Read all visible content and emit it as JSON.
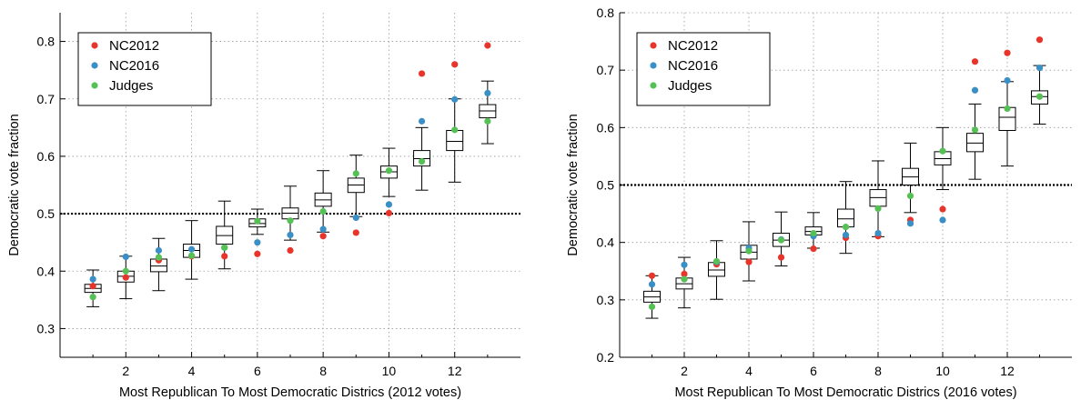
{
  "chart_data": [
    {
      "type": "box",
      "xlabel": "Most Republican To Most Democratic Districs (2012 votes)",
      "ylabel": "Democratic vote fraction",
      "xlim": [
        0,
        14
      ],
      "ylim": [
        0.25,
        0.85
      ],
      "xticks": [
        2,
        4,
        6,
        8,
        10,
        12
      ],
      "yticks": [
        0.3,
        0.4,
        0.5,
        0.6,
        0.7,
        0.8
      ],
      "grid": true,
      "legend_position": "top-left",
      "reference_line": 0.5,
      "boxes": [
        {
          "x": 1,
          "min": 0.338,
          "q1": 0.363,
          "median": 0.37,
          "q3": 0.377,
          "max": 0.402
        },
        {
          "x": 2,
          "min": 0.352,
          "q1": 0.381,
          "median": 0.391,
          "q3": 0.4,
          "max": 0.426
        },
        {
          "x": 3,
          "min": 0.366,
          "q1": 0.399,
          "median": 0.409,
          "q3": 0.421,
          "max": 0.457
        },
        {
          "x": 4,
          "min": 0.386,
          "q1": 0.424,
          "median": 0.436,
          "q3": 0.447,
          "max": 0.488
        },
        {
          "x": 5,
          "min": 0.404,
          "q1": 0.447,
          "median": 0.462,
          "q3": 0.478,
          "max": 0.522
        },
        {
          "x": 6,
          "min": 0.464,
          "q1": 0.477,
          "median": 0.483,
          "q3": 0.491,
          "max": 0.508
        },
        {
          "x": 7,
          "min": 0.454,
          "q1": 0.491,
          "median": 0.501,
          "q3": 0.51,
          "max": 0.548
        },
        {
          "x": 8,
          "min": 0.468,
          "q1": 0.513,
          "median": 0.524,
          "q3": 0.536,
          "max": 0.575
        },
        {
          "x": 9,
          "min": 0.495,
          "q1": 0.537,
          "median": 0.55,
          "q3": 0.562,
          "max": 0.602
        },
        {
          "x": 10,
          "min": 0.53,
          "q1": 0.562,
          "median": 0.573,
          "q3": 0.583,
          "max": 0.614
        },
        {
          "x": 11,
          "min": 0.541,
          "q1": 0.583,
          "median": 0.596,
          "q3": 0.61,
          "max": 0.65
        },
        {
          "x": 12,
          "min": 0.555,
          "q1": 0.61,
          "median": 0.626,
          "q3": 0.645,
          "max": 0.7
        },
        {
          "x": 13,
          "min": 0.622,
          "q1": 0.667,
          "median": 0.679,
          "q3": 0.69,
          "max": 0.731
        }
      ],
      "series": [
        {
          "name": "NC2012",
          "color": "#e8352b",
          "values": [
            0.374,
            0.389,
            0.419,
            0.426,
            0.426,
            0.43,
            0.436,
            0.461,
            0.467,
            0.501,
            0.744,
            0.76,
            0.793
          ]
        },
        {
          "name": "NC2016",
          "color": "#3a8fc7",
          "values": [
            0.386,
            0.425,
            0.436,
            0.438,
            0.441,
            0.45,
            0.463,
            0.473,
            0.493,
            0.516,
            0.661,
            0.699,
            0.71
          ]
        },
        {
          "name": "Judges",
          "color": "#55c155",
          "values": [
            0.355,
            0.4,
            0.424,
            0.427,
            0.441,
            0.487,
            0.488,
            0.504,
            0.57,
            0.575,
            0.591,
            0.646,
            0.661
          ]
        }
      ]
    },
    {
      "type": "box",
      "xlabel": "Most Republican To Most Democratic Districs (2016 votes)",
      "ylabel": "Democratic vote fraction",
      "xlim": [
        0,
        14
      ],
      "ylim": [
        0.2,
        0.8
      ],
      "xticks": [
        2,
        4,
        6,
        8,
        10,
        12
      ],
      "yticks": [
        0.2,
        0.3,
        0.4,
        0.5,
        0.6,
        0.7,
        0.8
      ],
      "grid": true,
      "legend_position": "top-left",
      "reference_line": 0.5,
      "boxes": [
        {
          "x": 1,
          "min": 0.268,
          "q1": 0.296,
          "median": 0.305,
          "q3": 0.315,
          "max": 0.342
        },
        {
          "x": 2,
          "min": 0.286,
          "q1": 0.319,
          "median": 0.328,
          "q3": 0.338,
          "max": 0.374
        },
        {
          "x": 3,
          "min": 0.301,
          "q1": 0.341,
          "median": 0.352,
          "q3": 0.365,
          "max": 0.403
        },
        {
          "x": 4,
          "min": 0.333,
          "q1": 0.371,
          "median": 0.383,
          "q3": 0.395,
          "max": 0.436
        },
        {
          "x": 5,
          "min": 0.359,
          "q1": 0.393,
          "median": 0.404,
          "q3": 0.416,
          "max": 0.453
        },
        {
          "x": 6,
          "min": 0.39,
          "q1": 0.413,
          "median": 0.419,
          "q3": 0.427,
          "max": 0.452
        },
        {
          "x": 7,
          "min": 0.381,
          "q1": 0.427,
          "median": 0.441,
          "q3": 0.458,
          "max": 0.506
        },
        {
          "x": 8,
          "min": 0.41,
          "q1": 0.463,
          "median": 0.478,
          "q3": 0.492,
          "max": 0.542
        },
        {
          "x": 9,
          "min": 0.452,
          "q1": 0.5,
          "median": 0.514,
          "q3": 0.529,
          "max": 0.573
        },
        {
          "x": 10,
          "min": 0.492,
          "q1": 0.535,
          "median": 0.546,
          "q3": 0.558,
          "max": 0.6
        },
        {
          "x": 11,
          "min": 0.51,
          "q1": 0.558,
          "median": 0.573,
          "q3": 0.59,
          "max": 0.641
        },
        {
          "x": 12,
          "min": 0.533,
          "q1": 0.595,
          "median": 0.618,
          "q3": 0.635,
          "max": 0.68
        },
        {
          "x": 13,
          "min": 0.606,
          "q1": 0.641,
          "median": 0.654,
          "q3": 0.664,
          "max": 0.708
        }
      ],
      "series": [
        {
          "name": "NC2012",
          "color": "#e8352b",
          "values": [
            0.342,
            0.345,
            0.362,
            0.366,
            0.374,
            0.389,
            0.408,
            0.411,
            0.439,
            0.458,
            0.715,
            0.73,
            0.753
          ]
        },
        {
          "name": "NC2016",
          "color": "#3a8fc7",
          "values": [
            0.327,
            0.361,
            0.366,
            0.39,
            0.405,
            0.411,
            0.413,
            0.416,
            0.433,
            0.439,
            0.665,
            0.682,
            0.704
          ]
        },
        {
          "name": "Judges",
          "color": "#55c155",
          "values": [
            0.288,
            0.336,
            0.367,
            0.385,
            0.404,
            0.416,
            0.427,
            0.459,
            0.481,
            0.559,
            0.596,
            0.633,
            0.654
          ]
        }
      ]
    }
  ]
}
